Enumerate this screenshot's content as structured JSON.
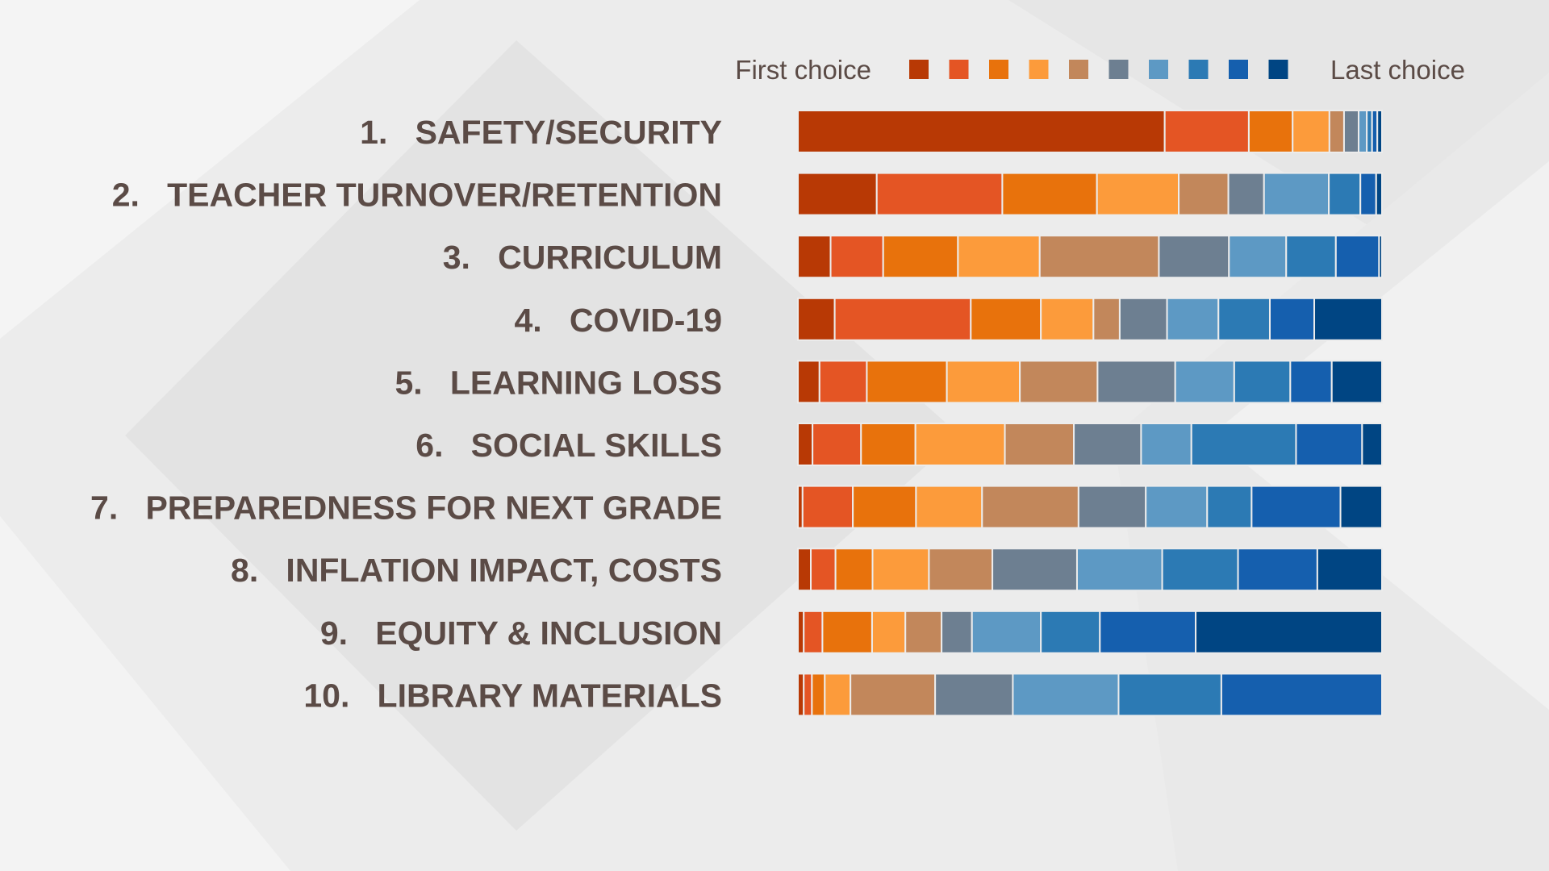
{
  "chart_data": {
    "type": "bar",
    "stacked": true,
    "orientation": "horizontal",
    "normalized": "percent",
    "legend": {
      "placement": "top-right",
      "start_label": "First choice",
      "end_label": "Last choice",
      "colors": [
        "#b83905",
        "#e45524",
        "#e8720c",
        "#fc9b3b",
        "#c2875b",
        "#6d7f91",
        "#5d99c4",
        "#2c7ab4",
        "#155fae",
        "#004583"
      ]
    },
    "series": [
      {
        "rank": 1
      },
      {
        "rank": 2
      },
      {
        "rank": 3
      },
      {
        "rank": 4
      },
      {
        "rank": 5
      },
      {
        "rank": 6
      },
      {
        "rank": 7
      },
      {
        "rank": 8
      },
      {
        "rank": 9
      },
      {
        "rank": 10
      }
    ],
    "categories": [
      {
        "number": "1.",
        "name": "SAFETY/SECURITY",
        "values": [
          62.8,
          14.4,
          7.5,
          6.3,
          2.5,
          2.5,
          1.4,
          0.9,
          0.9,
          0.8
        ]
      },
      {
        "number": "2.",
        "name": "TEACHER TURNOVER/RETENTION",
        "values": [
          13.5,
          21.5,
          16.2,
          14.0,
          8.5,
          6.1,
          11.1,
          5.4,
          2.7,
          1.0
        ]
      },
      {
        "number": "3.",
        "name": "CURRICULUM",
        "values": [
          5.6,
          9.0,
          12.8,
          14.0,
          20.4,
          12.0,
          9.8,
          8.5,
          7.4,
          0.5
        ]
      },
      {
        "number": "4.",
        "name": "COVID-19",
        "values": [
          6.3,
          23.3,
          12.0,
          9.0,
          4.5,
          8.1,
          8.8,
          8.8,
          7.6,
          11.6
        ]
      },
      {
        "number": "5.",
        "name": "LEARNING LOSS",
        "values": [
          3.7,
          8.1,
          13.7,
          12.5,
          13.3,
          13.3,
          10.1,
          9.6,
          7.1,
          8.6
        ]
      },
      {
        "number": "6.",
        "name": "SOCIAL SKILLS",
        "values": [
          2.5,
          8.3,
          9.3,
          15.3,
          11.8,
          11.5,
          8.6,
          17.9,
          11.3,
          3.4
        ]
      },
      {
        "number": "7.",
        "name": "PREPAREDNESS FOR NEXT GRADE",
        "values": [
          0.8,
          8.6,
          10.8,
          11.3,
          16.5,
          11.5,
          10.5,
          7.6,
          15.2,
          7.1
        ]
      },
      {
        "number": "8.",
        "name": "INFLATION IMPACT, COSTS",
        "values": [
          2.2,
          4.2,
          6.3,
          9.6,
          10.8,
          14.4,
          14.5,
          12.9,
          13.5,
          11.0
        ]
      },
      {
        "number": "9.",
        "name": "EQUITY & INCLUSION",
        "values": [
          1.0,
          3.2,
          8.5,
          5.7,
          6.2,
          5.2,
          11.8,
          10.1,
          16.4,
          31.9
        ]
      },
      {
        "number": "10.",
        "name": "LIBRARY MATERIALS",
        "values": [
          1.0,
          1.4,
          2.2,
          4.4,
          14.5,
          13.3,
          18.1,
          17.6,
          27.5,
          0.0
        ]
      }
    ]
  }
}
